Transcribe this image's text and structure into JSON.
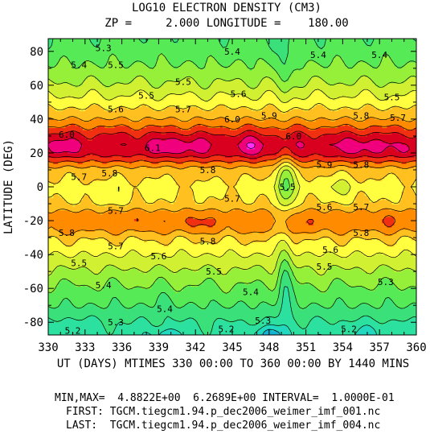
{
  "chart_data": {
    "type": "heatmap",
    "title": "LOG10 ELECTRON DENSITY (CM3)",
    "subtitle": "ZP =     2.000 LONGITUDE =    180.00",
    "xlabel": "UT (DAYS) MTIMES 330 00:00 TO 360 00:00 BY 1440 MINS",
    "ylabel": "LATITUDE (DEG)",
    "xlim": [
      330,
      360
    ],
    "ylim": [
      -87.5,
      87.5
    ],
    "x_ticks": [
      "330",
      "333",
      "336",
      "339",
      "342",
      "345",
      "348",
      "351",
      "354",
      "357",
      "360"
    ],
    "y_ticks": [
      "80",
      "60",
      "40",
      "20",
      "0",
      "-20",
      "-40",
      "-60",
      "-80"
    ],
    "min": 4.8822,
    "max": 6.2689,
    "interval": 0.1,
    "contour_levels": [
      4.9,
      5.0,
      5.1,
      5.2,
      5.3,
      5.4,
      5.5,
      5.6,
      5.7,
      5.8,
      5.9,
      6.0,
      6.1,
      6.2
    ],
    "colors": [
      "#0a58d8",
      "#14b4d2",
      "#22d8c0",
      "#2ce0a0",
      "#3ae07a",
      "#56ea56",
      "#96f03a",
      "#d2f032",
      "#ffff40",
      "#ffc020",
      "#ff8c00",
      "#f03010",
      "#d8001e",
      "#f0007c",
      "#ff30ff"
    ],
    "profile_lat": [
      -87.5,
      -80,
      -70,
      -60,
      -50,
      -40,
      -30,
      -25,
      -20,
      -15,
      -10,
      0,
      10,
      15,
      20,
      25,
      30,
      40,
      50,
      60,
      70,
      80,
      87.5
    ],
    "profile_val": [
      5.16,
      5.2,
      5.3,
      5.38,
      5.48,
      5.6,
      5.72,
      5.83,
      5.86,
      5.82,
      5.72,
      5.66,
      5.75,
      5.9,
      6.05,
      6.08,
      6.02,
      5.8,
      5.65,
      5.52,
      5.42,
      5.35,
      5.32
    ],
    "contour_labels": [
      {
        "t": "5.3",
        "x": 334.5,
        "y": 82
      },
      {
        "t": "5.4",
        "x": 345.0,
        "y": 80
      },
      {
        "t": "5.4",
        "x": 352.0,
        "y": 78
      },
      {
        "t": "5.4",
        "x": 357.0,
        "y": 78
      },
      {
        "t": "5.4",
        "x": 332.5,
        "y": 72
      },
      {
        "t": "5.5",
        "x": 335.5,
        "y": 72
      },
      {
        "t": "5.5",
        "x": 341.0,
        "y": 62
      },
      {
        "t": "5.5",
        "x": 338.0,
        "y": 54
      },
      {
        "t": "5.6",
        "x": 345.5,
        "y": 55
      },
      {
        "t": "5.5",
        "x": 358.0,
        "y": 53
      },
      {
        "t": "5.6",
        "x": 335.5,
        "y": 46
      },
      {
        "t": "5.7",
        "x": 341.0,
        "y": 46
      },
      {
        "t": "5.9",
        "x": 348.0,
        "y": 42
      },
      {
        "t": "5.7",
        "x": 358.5,
        "y": 41
      },
      {
        "t": "5.8",
        "x": 355.5,
        "y": 42
      },
      {
        "t": "6.0",
        "x": 345.0,
        "y": 40
      },
      {
        "t": "6.0",
        "x": 331.5,
        "y": 31
      },
      {
        "t": "6.0",
        "x": 350.0,
        "y": 30
      },
      {
        "t": "6.1",
        "x": 338.5,
        "y": 23
      },
      {
        "t": "5.9",
        "x": 352.5,
        "y": 13
      },
      {
        "t": "5.8",
        "x": 355.5,
        "y": 13
      },
      {
        "t": "5.8",
        "x": 335.0,
        "y": 8
      },
      {
        "t": "5.8",
        "x": 343.0,
        "y": 10
      },
      {
        "t": "5.7",
        "x": 332.5,
        "y": 6
      },
      {
        "t": "5.5",
        "x": 349.5,
        "y": 0
      },
      {
        "t": "5.7",
        "x": 345.0,
        "y": -7
      },
      {
        "t": "5.6",
        "x": 352.5,
        "y": -12
      },
      {
        "t": "5.7",
        "x": 355.5,
        "y": -12
      },
      {
        "t": "5.7",
        "x": 335.5,
        "y": -14
      },
      {
        "t": "5.8",
        "x": 331.5,
        "y": -27
      },
      {
        "t": "5.8",
        "x": 343.0,
        "y": -32
      },
      {
        "t": "5.8",
        "x": 355.5,
        "y": -27
      },
      {
        "t": "5.7",
        "x": 335.5,
        "y": -35
      },
      {
        "t": "5.6",
        "x": 339.0,
        "y": -41
      },
      {
        "t": "5.6",
        "x": 353.0,
        "y": -37
      },
      {
        "t": "5.5",
        "x": 332.5,
        "y": -45
      },
      {
        "t": "5.5",
        "x": 343.5,
        "y": -50
      },
      {
        "t": "5.5",
        "x": 352.5,
        "y": -47
      },
      {
        "t": "5.4",
        "x": 334.5,
        "y": -58
      },
      {
        "t": "5.4",
        "x": 346.5,
        "y": -62
      },
      {
        "t": "5.3",
        "x": 357.5,
        "y": -56
      },
      {
        "t": "5.4",
        "x": 339.5,
        "y": -72
      },
      {
        "t": "5.3",
        "x": 335.5,
        "y": -80
      },
      {
        "t": "5.3",
        "x": 347.5,
        "y": -79
      },
      {
        "t": "5.2",
        "x": 332.0,
        "y": -85
      },
      {
        "t": "5.2",
        "x": 344.5,
        "y": -84
      },
      {
        "t": "5.2",
        "x": 354.5,
        "y": -84
      }
    ]
  },
  "footer": {
    "minmax": "MIN,MAX=  4.8822E+00  6.2689E+00 INTERVAL=  1.0000E-01",
    "first": "FIRST: TGCM.tiegcm1.94.p_dec2006_weimer_imf_001.nc",
    "last": "LAST:  TGCM.tiegcm1.94.p_dec2006_weimer_imf_004.nc"
  }
}
